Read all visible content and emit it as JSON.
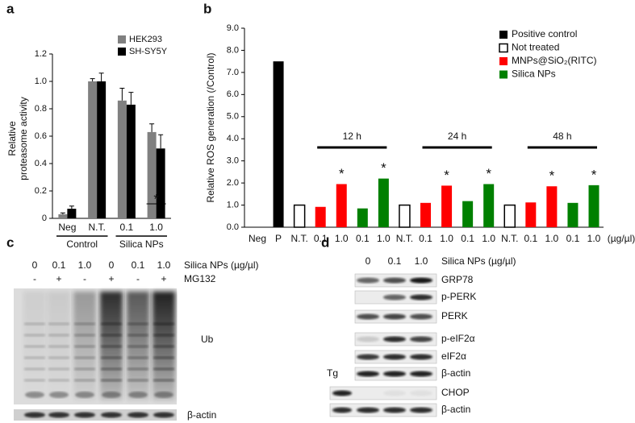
{
  "panel_labels": [
    "a",
    "b",
    "c",
    "d"
  ],
  "chart_data": [
    {
      "type": "bar",
      "ylabel_lines": [
        "Relative",
        "proteasome activity"
      ],
      "categories": [
        "Neg",
        "N.T.",
        "0.1",
        "1.0"
      ],
      "groups": [
        "Control",
        "Silica NPs"
      ],
      "series": [
        {
          "name": "HEK293",
          "color": "#808080",
          "values": [
            0.03,
            1.0,
            0.86,
            0.63
          ],
          "errors": [
            0.01,
            0.02,
            0.09,
            0.06
          ]
        },
        {
          "name": "SH-SY5Y",
          "color": "#000000",
          "values": [
            0.07,
            1.0,
            0.83,
            0.51
          ],
          "errors": [
            0.02,
            0.06,
            0.09,
            0.1
          ]
        }
      ],
      "ylim": [
        0,
        1.2
      ],
      "yticks": [
        0,
        0.2,
        0.4,
        0.6,
        0.8,
        {
          "value": 1,
          "label": "1.0"
        },
        1.2
      ],
      "significance": "*"
    },
    {
      "type": "bar",
      "ylabel": "Relative ROS generation (/Control)",
      "categories": [
        "Neg",
        "P",
        "N.T.",
        "0.1",
        "1.0",
        "0.1",
        "1.0",
        "N.T.",
        "0.1",
        "1.0",
        "0.1",
        "1.0",
        "N.T.",
        "0.1",
        "1.0",
        "0.1",
        "1.0"
      ],
      "x_unit": "(µg/µl)",
      "series": [
        {
          "name": "Positive control",
          "color": "#000000",
          "values": [
            null,
            7.5,
            null,
            null,
            null,
            null,
            null,
            null,
            null,
            null,
            null,
            null,
            null,
            null,
            null,
            null,
            null
          ]
        },
        {
          "name": "Not treated",
          "color": "#ffffff",
          "values": [
            null,
            null,
            1.0,
            null,
            null,
            null,
            null,
            1.0,
            null,
            null,
            null,
            null,
            1.0,
            null,
            null,
            null,
            null
          ]
        },
        {
          "name": "MNPs@SiO₂(RITC)",
          "color": "#ff0000",
          "values": [
            null,
            null,
            null,
            0.92,
            1.95,
            null,
            null,
            null,
            1.1,
            1.88,
            null,
            null,
            null,
            1.12,
            1.85,
            null,
            null
          ]
        },
        {
          "name": "Silica NPs",
          "color": "#008000",
          "values": [
            null,
            null,
            null,
            null,
            null,
            0.85,
            2.2,
            null,
            null,
            null,
            1.18,
            1.95,
            null,
            null,
            null,
            1.1,
            1.9
          ]
        }
      ],
      "ylim": [
        0,
        9
      ],
      "yticks": [
        {
          "value": 0,
          "label": "0.0"
        },
        {
          "value": 1,
          "label": "1.0"
        },
        {
          "value": 2,
          "label": "2.0"
        },
        {
          "value": 3,
          "label": "3.0"
        },
        {
          "value": 4,
          "label": "4.0"
        },
        {
          "value": 5,
          "label": "5.0"
        },
        {
          "value": 6,
          "label": "6.0"
        },
        {
          "value": 7,
          "label": "7.0"
        },
        {
          "value": 8,
          "label": "8.0"
        },
        {
          "value": 9,
          "label": "9.0"
        }
      ],
      "time_labels": [
        "12 h",
        "24 h",
        "48 h"
      ],
      "significance": "*"
    }
  ],
  "blot_c": {
    "doses": [
      "0",
      "0.1",
      "1.0",
      "0",
      "0.1",
      "1.0"
    ],
    "dose_label": "Silica NPs (µg/µl)",
    "mg132": [
      "-",
      "+",
      "-",
      "+",
      "-",
      "+"
    ],
    "mg132_label": "MG132",
    "blot_labels": [
      "Ub",
      "β-actin"
    ]
  },
  "blot_d": {
    "doses": [
      "0",
      "0.1",
      "1.0"
    ],
    "dose_label": "Silica NPs (µg/µl)",
    "rows": [
      "GRP78",
      "p-PERK",
      "PERK",
      "p-eIF2α",
      "eIF2α",
      "β-actin",
      "CHOP",
      "β-actin"
    ],
    "control_label": "Tg"
  }
}
